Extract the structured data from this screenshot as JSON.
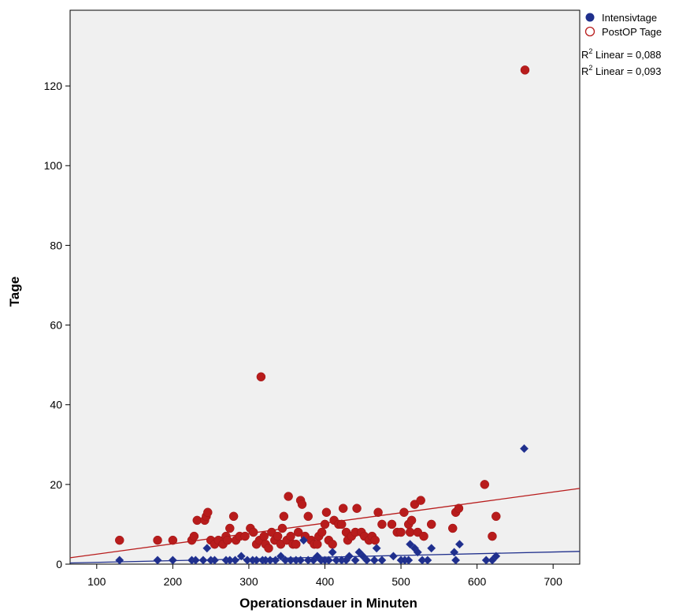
{
  "colors": {
    "series1": "#1f2f8c",
    "series2": "#b81c1c",
    "plot_bg": "#f0f0f0"
  },
  "chart_data": {
    "type": "scatter",
    "title": "",
    "xlabel": "Operationsdauer in Minuten",
    "ylabel": "Tage",
    "xlim": [
      65,
      735
    ],
    "ylim": [
      0,
      139
    ],
    "x_ticks": [
      100,
      200,
      300,
      400,
      500,
      600,
      700
    ],
    "y_ticks": [
      0,
      20,
      40,
      60,
      80,
      100,
      120
    ],
    "grid": false,
    "legend_position": "top-right",
    "legend": [
      {
        "label": "Intensivtage",
        "marker": "filled-circle",
        "color": "#1f2f8c"
      },
      {
        "label": "PostOP Tage",
        "marker": "open-circle",
        "color": "#b81c1c"
      }
    ],
    "r2_labels": [
      {
        "prefix": "R",
        "superscript": "2",
        "text": " Linear = 0,088",
        "color": "#1f2f8c"
      },
      {
        "prefix": "R",
        "superscript": "2",
        "text": " Linear = 0,093",
        "color": "#b81c1c"
      }
    ],
    "series": [
      {
        "name": "Intensivtage",
        "marker": "diamond",
        "color": "#1f2f8c",
        "fit": {
          "x": [
            65,
            735
          ],
          "y": [
            0.3,
            3.2
          ]
        },
        "points": [
          [
            130,
            1
          ],
          [
            180,
            1
          ],
          [
            200,
            1
          ],
          [
            225,
            1
          ],
          [
            230,
            1
          ],
          [
            240,
            1
          ],
          [
            245,
            4
          ],
          [
            250,
            1
          ],
          [
            255,
            1
          ],
          [
            270,
            1
          ],
          [
            275,
            1
          ],
          [
            282,
            1
          ],
          [
            290,
            2
          ],
          [
            298,
            1
          ],
          [
            305,
            1
          ],
          [
            310,
            1
          ],
          [
            318,
            1
          ],
          [
            322,
            1
          ],
          [
            328,
            1
          ],
          [
            335,
            1
          ],
          [
            342,
            2
          ],
          [
            348,
            1
          ],
          [
            355,
            1
          ],
          [
            362,
            1
          ],
          [
            368,
            1
          ],
          [
            372,
            6
          ],
          [
            378,
            1
          ],
          [
            385,
            1
          ],
          [
            390,
            2
          ],
          [
            395,
            1
          ],
          [
            400,
            1
          ],
          [
            405,
            1
          ],
          [
            410,
            3
          ],
          [
            415,
            1
          ],
          [
            422,
            1
          ],
          [
            428,
            1
          ],
          [
            432,
            2
          ],
          [
            440,
            1
          ],
          [
            445,
            3
          ],
          [
            450,
            2
          ],
          [
            455,
            1
          ],
          [
            465,
            1
          ],
          [
            468,
            4
          ],
          [
            475,
            1
          ],
          [
            490,
            2
          ],
          [
            500,
            1
          ],
          [
            505,
            1
          ],
          [
            510,
            1
          ],
          [
            512,
            5
          ],
          [
            518,
            4
          ],
          [
            522,
            3
          ],
          [
            528,
            1
          ],
          [
            535,
            1
          ],
          [
            540,
            4
          ],
          [
            570,
            3
          ],
          [
            572,
            1
          ],
          [
            577,
            5
          ],
          [
            612,
            1
          ],
          [
            620,
            1
          ],
          [
            625,
            2
          ],
          [
            662,
            29
          ]
        ]
      },
      {
        "name": "PostOP Tage",
        "marker": "circle",
        "color": "#b81c1c",
        "fit": {
          "x": [
            65,
            735
          ],
          "y": [
            1.6,
            19.0
          ]
        },
        "points": [
          [
            130,
            6
          ],
          [
            180,
            6
          ],
          [
            200,
            6
          ],
          [
            225,
            6
          ],
          [
            228,
            7
          ],
          [
            232,
            11
          ],
          [
            242,
            11
          ],
          [
            244,
            12
          ],
          [
            246,
            13
          ],
          [
            250,
            6
          ],
          [
            255,
            5
          ],
          [
            260,
            6
          ],
          [
            266,
            5
          ],
          [
            270,
            7
          ],
          [
            272,
            6
          ],
          [
            275,
            9
          ],
          [
            280,
            12
          ],
          [
            283,
            6
          ],
          [
            288,
            7
          ],
          [
            295,
            7
          ],
          [
            302,
            9
          ],
          [
            306,
            8
          ],
          [
            310,
            5
          ],
          [
            314,
            6
          ],
          [
            316,
            47
          ],
          [
            320,
            7
          ],
          [
            322,
            5
          ],
          [
            326,
            4
          ],
          [
            330,
            8
          ],
          [
            334,
            6
          ],
          [
            338,
            7
          ],
          [
            342,
            5
          ],
          [
            344,
            9
          ],
          [
            346,
            12
          ],
          [
            350,
            6
          ],
          [
            352,
            17
          ],
          [
            355,
            7
          ],
          [
            358,
            5
          ],
          [
            362,
            5
          ],
          [
            365,
            8
          ],
          [
            368,
            16
          ],
          [
            370,
            15
          ],
          [
            374,
            7
          ],
          [
            378,
            12
          ],
          [
            382,
            6
          ],
          [
            386,
            5
          ],
          [
            390,
            5
          ],
          [
            392,
            7
          ],
          [
            396,
            8
          ],
          [
            400,
            10
          ],
          [
            402,
            13
          ],
          [
            405,
            6
          ],
          [
            410,
            5
          ],
          [
            412,
            11
          ],
          [
            418,
            10
          ],
          [
            422,
            10
          ],
          [
            424,
            14
          ],
          [
            428,
            8
          ],
          [
            430,
            6
          ],
          [
            435,
            7
          ],
          [
            440,
            8
          ],
          [
            442,
            14
          ],
          [
            448,
            8
          ],
          [
            452,
            7
          ],
          [
            458,
            6
          ],
          [
            462,
            7
          ],
          [
            466,
            6
          ],
          [
            470,
            13
          ],
          [
            475,
            10
          ],
          [
            488,
            10
          ],
          [
            495,
            8
          ],
          [
            500,
            8
          ],
          [
            504,
            13
          ],
          [
            510,
            10
          ],
          [
            512,
            8
          ],
          [
            514,
            11
          ],
          [
            518,
            15
          ],
          [
            522,
            8
          ],
          [
            526,
            16
          ],
          [
            530,
            7
          ],
          [
            540,
            10
          ],
          [
            568,
            9
          ],
          [
            572,
            13
          ],
          [
            576,
            14
          ],
          [
            610,
            20
          ],
          [
            620,
            7
          ],
          [
            625,
            12
          ],
          [
            663,
            124
          ]
        ]
      }
    ]
  }
}
